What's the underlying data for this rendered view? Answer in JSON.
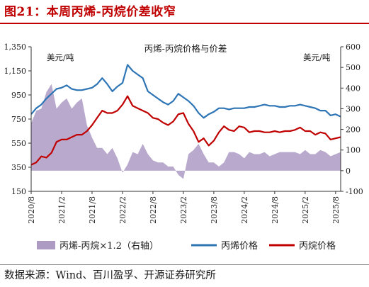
{
  "figure": {
    "title": "图21：本周丙烯-丙烷价差收窄",
    "source": "数据来源：Wind、百川盈孚、开源证券研究所"
  },
  "colors": {
    "title_red": "#c00000",
    "propylene": "#2e75b6",
    "propane": "#c00000",
    "spread": "#ad9bc4"
  },
  "chart_data": {
    "type": "line",
    "title": "丙烯-丙烷价格与价差",
    "left_unit": "美元/吨",
    "right_unit": "美元/吨",
    "y_left": {
      "ylim": [
        150,
        1350
      ],
      "ticks": [
        "150",
        "350",
        "550",
        "750",
        "950",
        "1,150",
        "1,350"
      ]
    },
    "y_right": {
      "ylim": [
        -100,
        600
      ],
      "ticks": [
        "-100",
        "0",
        "100",
        "200",
        "300",
        "400",
        "500",
        "600"
      ]
    },
    "x_range": [
      "2020/8",
      "2025/9"
    ],
    "x_ticks": [
      "2020/8",
      "2021/2",
      "2021/8",
      "2022/2",
      "2022/8",
      "2023/2",
      "2023/8",
      "2024/2",
      "2024/8",
      "2025/2",
      "2025/8"
    ],
    "grid": false,
    "legend_position": "bottom",
    "series": [
      {
        "name": "丙烯-丙烷×1.2（右轴）",
        "type": "area",
        "axis": "right",
        "points": [
          [
            "2020/8",
            230
          ],
          [
            "2020/9",
            290
          ],
          [
            "2020/10",
            300
          ],
          [
            "2020/11",
            380
          ],
          [
            "2020/12",
            420
          ],
          [
            "2021/1",
            300
          ],
          [
            "2021/2",
            330
          ],
          [
            "2021/3",
            350
          ],
          [
            "2021/4",
            300
          ],
          [
            "2021/5",
            330
          ],
          [
            "2021/6",
            350
          ],
          [
            "2021/7",
            220
          ],
          [
            "2021/8",
            160
          ],
          [
            "2021/9",
            110
          ],
          [
            "2021/10",
            110
          ],
          [
            "2021/11",
            80
          ],
          [
            "2021/12",
            110
          ],
          [
            "2022/1",
            60
          ],
          [
            "2022/2",
            -10
          ],
          [
            "2022/3",
            30
          ],
          [
            "2022/4",
            90
          ],
          [
            "2022/5",
            80
          ],
          [
            "2022/6",
            130
          ],
          [
            "2022/7",
            80
          ],
          [
            "2022/8",
            50
          ],
          [
            "2022/9",
            40
          ],
          [
            "2022/10",
            40
          ],
          [
            "2022/11",
            20
          ],
          [
            "2022/12",
            20
          ],
          [
            "2023/1",
            -20
          ],
          [
            "2023/2",
            -40
          ],
          [
            "2023/3",
            80
          ],
          [
            "2023/4",
            100
          ],
          [
            "2023/5",
            130
          ],
          [
            "2023/6",
            80
          ],
          [
            "2023/7",
            40
          ],
          [
            "2023/8",
            40
          ],
          [
            "2023/9",
            20
          ],
          [
            "2023/10",
            40
          ],
          [
            "2023/11",
            90
          ],
          [
            "2023/12",
            90
          ],
          [
            "2024/1",
            80
          ],
          [
            "2024/2",
            60
          ],
          [
            "2024/3",
            90
          ],
          [
            "2024/4",
            80
          ],
          [
            "2024/5",
            80
          ],
          [
            "2024/6",
            90
          ],
          [
            "2024/7",
            70
          ],
          [
            "2024/8",
            80
          ],
          [
            "2024/9",
            90
          ],
          [
            "2024/10",
            90
          ],
          [
            "2024/11",
            90
          ],
          [
            "2024/12",
            90
          ],
          [
            "2025/1",
            80
          ],
          [
            "2025/2",
            100
          ],
          [
            "2025/3",
            80
          ],
          [
            "2025/4",
            80
          ],
          [
            "2025/5",
            100
          ],
          [
            "2025/6",
            90
          ],
          [
            "2025/7",
            70
          ],
          [
            "2025/8",
            80
          ],
          [
            "2025/9",
            90
          ]
        ]
      },
      {
        "name": "丙烯价格",
        "type": "line",
        "axis": "left",
        "points": [
          [
            "2020/8",
            790
          ],
          [
            "2020/9",
            840
          ],
          [
            "2020/10",
            870
          ],
          [
            "2020/11",
            920
          ],
          [
            "2020/12",
            960
          ],
          [
            "2021/1",
            1000
          ],
          [
            "2021/2",
            1010
          ],
          [
            "2021/3",
            1030
          ],
          [
            "2021/4",
            1000
          ],
          [
            "2021/5",
            990
          ],
          [
            "2021/6",
            990
          ],
          [
            "2021/7",
            1000
          ],
          [
            "2021/8",
            1010
          ],
          [
            "2021/9",
            1040
          ],
          [
            "2021/10",
            1090
          ],
          [
            "2021/11",
            1040
          ],
          [
            "2021/12",
            980
          ],
          [
            "2022/1",
            1020
          ],
          [
            "2022/2",
            1050
          ],
          [
            "2022/3",
            1200
          ],
          [
            "2022/4",
            1150
          ],
          [
            "2022/5",
            1120
          ],
          [
            "2022/6",
            1090
          ],
          [
            "2022/7",
            980
          ],
          [
            "2022/8",
            950
          ],
          [
            "2022/9",
            920
          ],
          [
            "2022/10",
            890
          ],
          [
            "2022/11",
            870
          ],
          [
            "2022/12",
            900
          ],
          [
            "2023/1",
            960
          ],
          [
            "2023/2",
            930
          ],
          [
            "2023/3",
            900
          ],
          [
            "2023/4",
            860
          ],
          [
            "2023/5",
            800
          ],
          [
            "2023/6",
            760
          ],
          [
            "2023/7",
            790
          ],
          [
            "2023/8",
            810
          ],
          [
            "2023/9",
            840
          ],
          [
            "2023/10",
            840
          ],
          [
            "2023/11",
            830
          ],
          [
            "2023/12",
            840
          ],
          [
            "2024/1",
            840
          ],
          [
            "2024/2",
            840
          ],
          [
            "2024/3",
            850
          ],
          [
            "2024/4",
            850
          ],
          [
            "2024/5",
            860
          ],
          [
            "2024/6",
            870
          ],
          [
            "2024/7",
            860
          ],
          [
            "2024/8",
            860
          ],
          [
            "2024/9",
            850
          ],
          [
            "2024/10",
            850
          ],
          [
            "2024/11",
            860
          ],
          [
            "2024/12",
            860
          ],
          [
            "2025/1",
            870
          ],
          [
            "2025/2",
            860
          ],
          [
            "2025/3",
            850
          ],
          [
            "2025/4",
            840
          ],
          [
            "2025/5",
            820
          ],
          [
            "2025/6",
            820
          ],
          [
            "2025/7",
            780
          ],
          [
            "2025/8",
            790
          ],
          [
            "2025/9",
            770
          ]
        ]
      },
      {
        "name": "丙烷价格",
        "type": "line",
        "axis": "left",
        "points": [
          [
            "2020/8",
            370
          ],
          [
            "2020/9",
            390
          ],
          [
            "2020/10",
            440
          ],
          [
            "2020/11",
            430
          ],
          [
            "2020/12",
            470
          ],
          [
            "2021/1",
            560
          ],
          [
            "2021/2",
            580
          ],
          [
            "2021/3",
            580
          ],
          [
            "2021/4",
            600
          ],
          [
            "2021/5",
            620
          ],
          [
            "2021/6",
            620
          ],
          [
            "2021/7",
            650
          ],
          [
            "2021/8",
            700
          ],
          [
            "2021/9",
            760
          ],
          [
            "2021/10",
            820
          ],
          [
            "2021/11",
            800
          ],
          [
            "2021/12",
            800
          ],
          [
            "2022/1",
            820
          ],
          [
            "2022/2",
            870
          ],
          [
            "2022/3",
            940
          ],
          [
            "2022/4",
            860
          ],
          [
            "2022/5",
            840
          ],
          [
            "2022/6",
            820
          ],
          [
            "2022/7",
            800
          ],
          [
            "2022/8",
            760
          ],
          [
            "2022/9",
            750
          ],
          [
            "2022/10",
            720
          ],
          [
            "2022/11",
            700
          ],
          [
            "2022/12",
            730
          ],
          [
            "2023/1",
            790
          ],
          [
            "2023/2",
            800
          ],
          [
            "2023/3",
            710
          ],
          [
            "2023/4",
            650
          ],
          [
            "2023/5",
            560
          ],
          [
            "2023/6",
            590
          ],
          [
            "2023/7",
            530
          ],
          [
            "2023/8",
            570
          ],
          [
            "2023/9",
            640
          ],
          [
            "2023/10",
            690
          ],
          [
            "2023/11",
            660
          ],
          [
            "2023/12",
            650
          ],
          [
            "2024/1",
            690
          ],
          [
            "2024/2",
            680
          ],
          [
            "2024/3",
            640
          ],
          [
            "2024/4",
            650
          ],
          [
            "2024/5",
            650
          ],
          [
            "2024/6",
            640
          ],
          [
            "2024/7",
            640
          ],
          [
            "2024/8",
            650
          ],
          [
            "2024/9",
            640
          ],
          [
            "2024/10",
            650
          ],
          [
            "2024/11",
            650
          ],
          [
            "2024/12",
            660
          ],
          [
            "2025/1",
            680
          ],
          [
            "2025/2",
            650
          ],
          [
            "2025/3",
            650
          ],
          [
            "2025/4",
            620
          ],
          [
            "2025/5",
            640
          ],
          [
            "2025/6",
            630
          ],
          [
            "2025/7",
            580
          ],
          [
            "2025/8",
            590
          ],
          [
            "2025/9",
            600
          ]
        ]
      }
    ]
  }
}
